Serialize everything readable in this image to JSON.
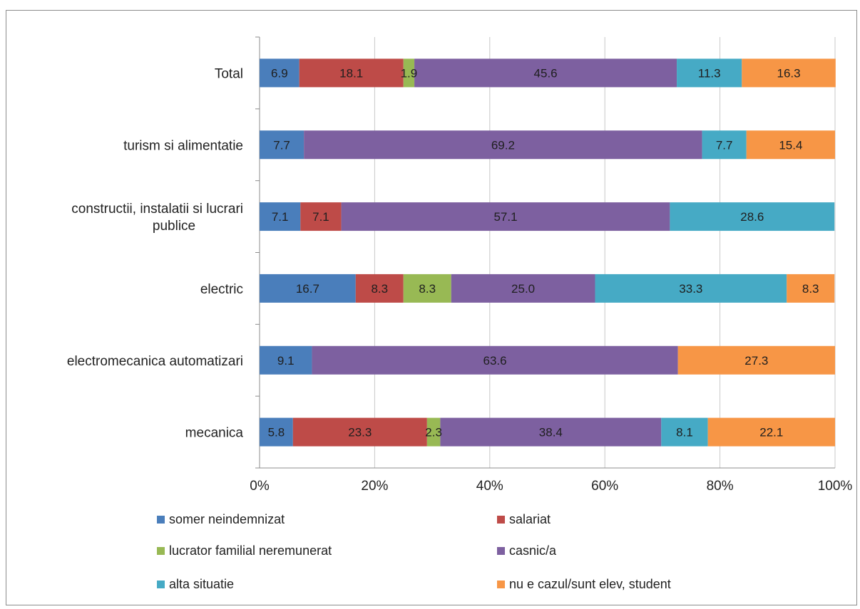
{
  "chart_data": {
    "type": "bar",
    "orientation": "horizontal",
    "stacked": "percent",
    "categories": [
      "Total",
      "turism si alimentatie",
      "constructii, instalatii si lucrari publice",
      "electric",
      "electromecanica automatizari",
      "mecanica"
    ],
    "category_label_lines": [
      [
        "Total"
      ],
      [
        "turism si alimentatie"
      ],
      [
        "constructii, instalatii si lucrari",
        "publice"
      ],
      [
        "electric"
      ],
      [
        "electromecanica automatizari"
      ],
      [
        "mecanica"
      ]
    ],
    "series": [
      {
        "name": "somer neindemnizat",
        "color": "#4a7ebb",
        "values": [
          6.9,
          7.7,
          7.1,
          16.7,
          9.1,
          5.8
        ]
      },
      {
        "name": "salariat",
        "color": "#be4b48",
        "values": [
          18.1,
          0,
          7.1,
          8.3,
          0,
          23.3
        ]
      },
      {
        "name": "lucrator familial neremunerat",
        "color": "#98b954",
        "values": [
          1.9,
          0,
          0,
          8.3,
          0,
          2.3
        ]
      },
      {
        "name": "casnic/a",
        "color": "#7d60a0",
        "values": [
          45.6,
          69.2,
          57.1,
          25.0,
          63.6,
          38.4
        ]
      },
      {
        "name": "alta situatie",
        "color": "#46aac5",
        "values": [
          11.3,
          7.7,
          28.6,
          33.3,
          0,
          8.1
        ]
      },
      {
        "name": "nu e cazul/sunt elev, student",
        "color": "#f79646",
        "values": [
          16.3,
          15.4,
          0,
          8.3,
          27.3,
          22.1
        ]
      }
    ],
    "data_labels": true,
    "x_ticks": [
      "0%",
      "20%",
      "40%",
      "60%",
      "80%",
      "100%"
    ],
    "xlim": [
      0,
      100
    ],
    "grid": "vertical",
    "legend": "bottom"
  }
}
